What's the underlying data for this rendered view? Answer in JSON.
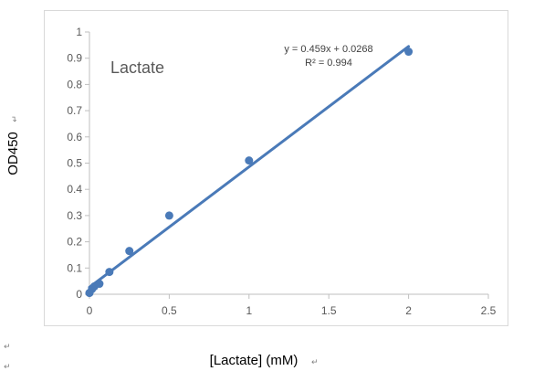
{
  "chart_data": {
    "type": "scatter",
    "title": "Lactate",
    "xlabel": "[Lactate] (mM)",
    "ylabel": "OD450",
    "xlim": [
      0,
      2.5
    ],
    "ylim": [
      0,
      1
    ],
    "x_ticks": [
      "0",
      "0.5",
      "1",
      "1.5",
      "2",
      "2.5"
    ],
    "y_ticks": [
      "0",
      "0.1",
      "0.2",
      "0.3",
      "0.4",
      "0.5",
      "0.6",
      "0.7",
      "0.8",
      "0.9",
      "1"
    ],
    "grid": false,
    "series": [
      {
        "x": [
          0,
          0.016,
          0.031,
          0.0625,
          0.125,
          0.25,
          0.5,
          1,
          2
        ],
        "y": [
          0.005,
          0.02,
          0.03,
          0.04,
          0.085,
          0.165,
          0.3,
          0.51,
          0.925
        ]
      }
    ],
    "trendline": {
      "slope": 0.459,
      "intercept": 0.0268,
      "x_range": [
        0,
        2
      ]
    },
    "annotations": {
      "equation": "y = 0.459x + 0.0268",
      "r_squared": "R² = 0.994"
    }
  },
  "marks": {
    "paragraph": "↵"
  },
  "colors": {
    "series": "#4a7ab8",
    "axis": "#bfbfbf",
    "frame": "#d9d9d9"
  }
}
